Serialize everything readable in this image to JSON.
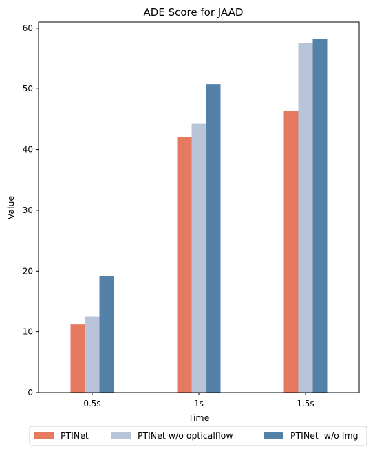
{
  "chart_data": {
    "type": "bar",
    "title": "ADE Score for JAAD",
    "xlabel": "Time",
    "ylabel": "Value",
    "categories": [
      "0.5s",
      "1s",
      "1.5s"
    ],
    "ylim": [
      0,
      61
    ],
    "yticks": [
      0,
      10,
      20,
      30,
      40,
      50,
      60
    ],
    "grid": false,
    "legend_position": "bottom-center",
    "series": [
      {
        "name": "PTINet",
        "color": "#E57A61",
        "values": [
          11.3,
          42.0,
          46.3
        ]
      },
      {
        "name": "PTINet w/o opticalflow",
        "color": "#B8C5D9",
        "values": [
          12.5,
          44.3,
          57.6
        ]
      },
      {
        "name": "PTINet  w/o Img",
        "color": "#5381A8",
        "values": [
          19.2,
          50.8,
          58.2
        ]
      }
    ]
  }
}
